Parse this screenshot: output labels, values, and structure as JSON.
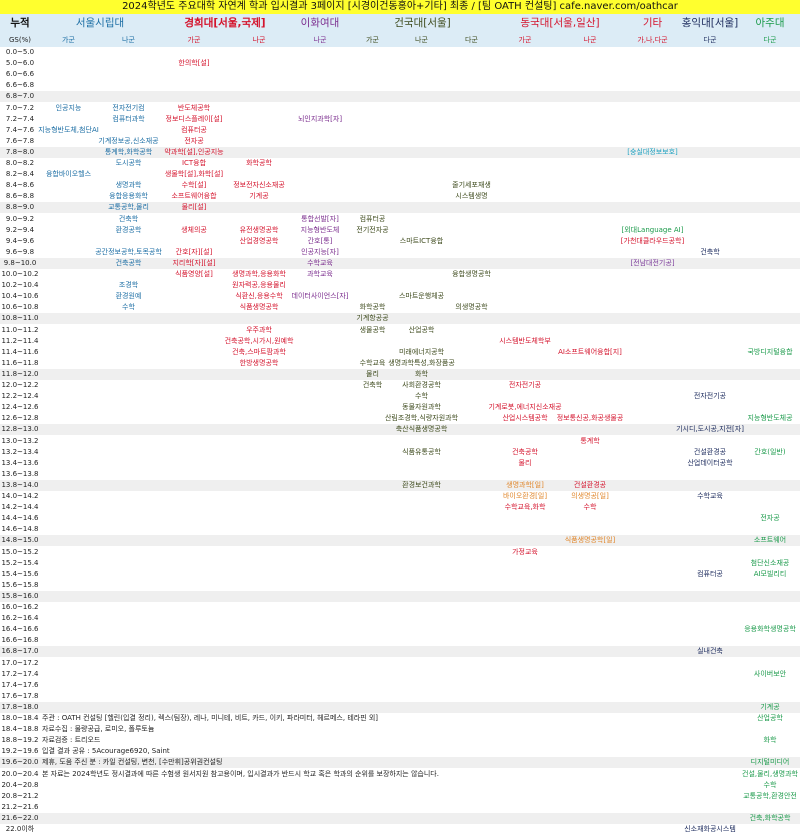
{
  "title": "2024학년도 주요대학 자연계 학과 입시결과 3페이지 [시경이건동홍아+기타] 최종 / [팀 OATH 컨설팅] cafe.naver.com/oathcar",
  "colors": {
    "title_bg": "#ffff2e",
    "header_bg": "#dcecf6",
    "shaded_row": "#efefef"
  },
  "header": {
    "cum_label": "누적",
    "gs_label": "GS(%)",
    "universities": [
      {
        "name": "서울시립대",
        "color": "#1c6ea4"
      },
      {
        "name": "경희대[서울,국제]",
        "color": "#d4132c"
      },
      {
        "name": "이화여대",
        "color": "#7b2d8e"
      },
      {
        "name": "건국대[서울]",
        "color": "#3d4a1c"
      },
      {
        "name": "동국대[서울,일산]",
        "color": "#d4132c"
      },
      {
        "name": "기타",
        "color": "#d4132c"
      },
      {
        "name": "홍익대[서울]",
        "color": "#1b2a5c"
      },
      {
        "name": "아주대",
        "color": "#1a9a4a"
      }
    ],
    "columns": [
      {
        "key": "uos_ga",
        "label": "가군",
        "color": "#1c6ea4"
      },
      {
        "key": "uos_na",
        "label": "나군",
        "color": "#1c6ea4"
      },
      {
        "key": "khu_ga",
        "label": "가군",
        "color": "#d4132c"
      },
      {
        "key": "khu_na",
        "label": "나군",
        "color": "#d4132c"
      },
      {
        "key": "ewha_na",
        "label": "나군",
        "color": "#7b2d8e"
      },
      {
        "key": "kku_ga",
        "label": "가군",
        "color": "#3d4a1c"
      },
      {
        "key": "kku_na",
        "label": "나군",
        "color": "#3d4a1c"
      },
      {
        "key": "kku_da",
        "label": "다군",
        "color": "#3d4a1c"
      },
      {
        "key": "dgu_ga",
        "label": "가군",
        "color": "#d4132c"
      },
      {
        "key": "dgu_na",
        "label": "나군",
        "color": "#d4132c"
      },
      {
        "key": "etc",
        "label": "가,나,다군",
        "color": "#d4132c"
      },
      {
        "key": "hongik_da",
        "label": "다군",
        "color": "#1b2a5c"
      },
      {
        "key": "ajou_da",
        "label": "다군",
        "color": "#1a9a4a"
      }
    ]
  },
  "special_colors": {
    "ilsan": "#e0862a",
    "soongsil": "#1aa0c0",
    "hufs": "#1a9a4a",
    "gachon": "#d4132c",
    "chonnam": "#7b3a9a"
  },
  "rows": [
    {
      "gs": "0.0~5.0",
      "cells": {}
    },
    {
      "gs": "5.0~6.0",
      "cells": {
        "khu_ga": "한의학[설]"
      }
    },
    {
      "gs": "6.0~6.6",
      "cells": {}
    },
    {
      "gs": "6.6~6.8",
      "cells": {}
    },
    {
      "gs": "6.8~7.0",
      "cells": {}
    },
    {
      "gs": "7.0~7.2",
      "cells": {
        "uos_ga": "인공지능",
        "uos_na": "전자전기컴",
        "khu_ga": "반도체공학"
      }
    },
    {
      "gs": "7.2~7.4",
      "cells": {
        "uos_na": "컴퓨터과학",
        "khu_ga": "정보디스플레이[설]",
        "ewha_na": "뇌인지과학[자]"
      }
    },
    {
      "gs": "7.4~7.6",
      "cells": {
        "uos_ga": "지능형반도체,첨단AI",
        "khu_ga": "컴퓨터공"
      }
    },
    {
      "gs": "7.6~7.8",
      "cells": {
        "uos_na": "기계정보공,신소재공",
        "khu_ga": "전자공"
      }
    },
    {
      "gs": "7.8~8.0",
      "cells": {
        "uos_na": "통계학,화학공학",
        "khu_ga": "약과학[설],인공지능",
        "etc": "[숭실대정보보호]"
      },
      "colors": {
        "etc": "soongsil"
      }
    },
    {
      "gs": "8.0~8.2",
      "cells": {
        "uos_na": "도시공학",
        "khu_ga": "ICT융합",
        "khu_na": "화학공학"
      }
    },
    {
      "gs": "8.2~8.4",
      "cells": {
        "uos_ga": "융합바이오헬스",
        "khu_ga": "생물학[설],화학[설]"
      }
    },
    {
      "gs": "8.4~8.6",
      "cells": {
        "uos_na": "생명과학",
        "khu_ga": "수학[설]",
        "khu_na": "정보전자신소재공",
        "kku_da": "줄기세포재생"
      }
    },
    {
      "gs": "8.6~8.8",
      "cells": {
        "uos_na": "융합응용화학",
        "khu_ga": "소프트웨어융합",
        "khu_na": "기계공",
        "kku_da": "시스템생명"
      }
    },
    {
      "gs": "8.8~9.0",
      "cells": {
        "uos_na": "교통공학,물리",
        "khu_ga": "물리[설]"
      }
    },
    {
      "gs": "9.0~9.2",
      "cells": {
        "uos_na": "건축학",
        "ewha_na": "통합선발[자]",
        "kku_ga": "컴퓨터공"
      }
    },
    {
      "gs": "9.2~9.4",
      "cells": {
        "uos_na": "환경공학",
        "khu_ga": "생체의공",
        "khu_na": "유전생명공학",
        "ewha_na": "지능형반도체",
        "kku_ga": "전기전자공",
        "etc": "[외대Language AI]"
      },
      "colors": {
        "etc": "hufs"
      }
    },
    {
      "gs": "9.4~9.6",
      "cells": {
        "khu_na": "산업경영공학",
        "ewha_na": "간호[통]",
        "kku_na": "스마트ICT융합",
        "etc": "[가천대클라우드공학]"
      },
      "colors": {
        "etc": "gachon"
      }
    },
    {
      "gs": "9.6~9.8",
      "cells": {
        "uos_na": "공간정보공학,토목공학",
        "khu_ga": "간호[자][설]",
        "ewha_na": "인공지능[자]",
        "hongik_da": "건축학"
      }
    },
    {
      "gs": "9.8~10.0",
      "cells": {
        "uos_na": "건축공학",
        "khu_ga": "지리학[자][설]",
        "ewha_na": "수학교육",
        "etc": "[전남대전기공]"
      },
      "colors": {
        "etc": "chonnam"
      }
    },
    {
      "gs": "10.0~10.2",
      "cells": {
        "khu_ga": "식품영양[설]",
        "khu_na": "생명과학,응용화학",
        "ewha_na": "과학교육",
        "kku_da": "융합생명공학"
      }
    },
    {
      "gs": "10.2~10.4",
      "cells": {
        "uos_na": "조경학",
        "khu_na": "원자력공,응용물리"
      }
    },
    {
      "gs": "10.4~10.6",
      "cells": {
        "uos_na": "환경원예",
        "khu_na": "식환신,응용수학",
        "ewha_na": "데이터사이언스[자]",
        "kku_na": "스마트운행체공"
      }
    },
    {
      "gs": "10.6~10.8",
      "cells": {
        "uos_na": "수학",
        "khu_na": "식품생명공학",
        "kku_ga": "화학공학",
        "kku_da": "의생명공학"
      }
    },
    {
      "gs": "10.8~11.0",
      "cells": {
        "kku_ga": "기계항공공"
      }
    },
    {
      "gs": "11.0~11.2",
      "cells": {
        "khu_na": "우주과학",
        "kku_ga": "생물공학",
        "kku_na": "산업공학"
      }
    },
    {
      "gs": "11.2~11.4",
      "cells": {
        "khu_na": "건축공학,시가시,원예학",
        "dgu_ga": "시스템반도체학부"
      }
    },
    {
      "gs": "11.4~11.6",
      "cells": {
        "khu_na": "건축,스마트팜과학",
        "kku_na": "미래에너지공학",
        "dgu_na": "AI소프트웨어융합[지]",
        "ajou_da": "국방디지털융합"
      }
    },
    {
      "gs": "11.6~11.8",
      "cells": {
        "khu_na": "한방생명공학",
        "kku_ga": "수학교육",
        "kku_na": "생명과학특성,화장품공"
      }
    },
    {
      "gs": "11.8~12.0",
      "cells": {
        "kku_ga": "물리",
        "kku_na": "화학"
      }
    },
    {
      "gs": "12.0~12.2",
      "cells": {
        "kku_ga": "건축학",
        "kku_na": "사회환경공학",
        "dgu_ga": "전자전기공"
      }
    },
    {
      "gs": "12.2~12.4",
      "cells": {
        "kku_na": "수학",
        "hongik_da": "전자전기공"
      }
    },
    {
      "gs": "12.4~12.6",
      "cells": {
        "kku_na": "동물자원과학",
        "dgu_ga": "기계로봇,에너지신소재공"
      }
    },
    {
      "gs": "12.6~12.8",
      "cells": {
        "kku_na": "산림조경학,식량자원과학",
        "dgu_ga": "산업시스템공학",
        "dgu_na": "정보통신공,화공생물공",
        "ajou_da": "지능형반도체공"
      }
    },
    {
      "gs": "12.8~13.0",
      "cells": {
        "kku_na": "축산식품생명공학",
        "hongik_da": "기시디,도시공,지전[자]"
      }
    },
    {
      "gs": "13.0~13.2",
      "cells": {
        "dgu_na": "통계학"
      }
    },
    {
      "gs": "13.2~13.4",
      "cells": {
        "kku_na": "식품유통공학",
        "dgu_ga": "건축공학",
        "hongik_da": "건설환경공",
        "ajou_da": "간호(일반)"
      }
    },
    {
      "gs": "13.4~13.6",
      "cells": {
        "dgu_ga": "물리",
        "hongik_da": "산업데이터공학"
      }
    },
    {
      "gs": "13.6~13.8",
      "cells": {}
    },
    {
      "gs": "13.8~14.0",
      "cells": {
        "kku_na": "환경보건과학",
        "dgu_ga": "생명과학[일]",
        "dgu_na": "건설환경공"
      },
      "colors": {
        "dgu_ga": "ilsan"
      }
    },
    {
      "gs": "14.0~14.2",
      "cells": {
        "dgu_ga": "바이오환경[일]",
        "dgu_na": "의생명공[일]",
        "hongik_da": "수학교육"
      },
      "colors": {
        "dgu_ga": "ilsan",
        "dgu_na": "ilsan"
      }
    },
    {
      "gs": "14.2~14.4",
      "cells": {
        "dgu_ga": "수학교육,화학",
        "dgu_na": "수학"
      }
    },
    {
      "gs": "14.4~14.6",
      "cells": {
        "ajou_da": "전자공"
      }
    },
    {
      "gs": "14.6~14.8",
      "cells": {}
    },
    {
      "gs": "14.8~15.0",
      "cells": {
        "dgu_na": "식품생명공학[일]",
        "ajou_da": "소프트웨어"
      },
      "colors": {
        "dgu_na": "ilsan"
      }
    },
    {
      "gs": "15.0~15.2",
      "cells": {
        "dgu_ga": "가정교육"
      }
    },
    {
      "gs": "15.2~15.4",
      "cells": {
        "ajou_da": "첨단신소재공"
      }
    },
    {
      "gs": "15.4~15.6",
      "cells": {
        "hongik_da": "컴퓨터공",
        "ajou_da": "AI모빌리티"
      }
    },
    {
      "gs": "15.6~15.8",
      "cells": {}
    },
    {
      "gs": "15.8~16.0",
      "cells": {}
    },
    {
      "gs": "16.0~16.2",
      "cells": {}
    },
    {
      "gs": "16.2~16.4",
      "cells": {}
    },
    {
      "gs": "16.4~16.6",
      "cells": {
        "ajou_da": "응용화학생명공학"
      }
    },
    {
      "gs": "16.6~16.8",
      "cells": {}
    },
    {
      "gs": "16.8~17.0",
      "cells": {
        "hongik_da": "실내건축"
      }
    },
    {
      "gs": "17.0~17.2",
      "cells": {}
    },
    {
      "gs": "17.2~17.4",
      "cells": {
        "ajou_da": "사이버보안"
      }
    },
    {
      "gs": "17.4~17.6",
      "cells": {}
    },
    {
      "gs": "17.6~17.8",
      "cells": {}
    },
    {
      "gs": "17.8~18.0",
      "cells": {
        "ajou_da": "기계공"
      }
    },
    {
      "gs": "18.0~18.4",
      "note": "주관 : OATH 컨설팅 [헬린(입결 정리), 렉스(팀장), 레나, 미니테, 비트, 카드, 이키, 파라미터, 헤르메스, 테라핀 외]",
      "cells": {
        "ajou_da": "산업공학"
      }
    },
    {
      "gs": "18.4~18.8",
      "note": "자료수집 : 물량공급, 로미오, 폴루토늄",
      "cells": {}
    },
    {
      "gs": "18.8~19.2",
      "note": "자료검증 : 트리오드",
      "cells": {
        "ajou_da": "화학"
      }
    },
    {
      "gs": "19.2~19.6",
      "note": "입결 결과 공유 : 5Acourage6920, Saint",
      "cells": {}
    },
    {
      "gs": "19.6~20.0",
      "note": "제휴, 도움 주신 분 : 카일 컨설팅, 변천, [수만휘]공위권컨설팅",
      "cells": {
        "ajou_da": "디지털미디어"
      }
    },
    {
      "gs": "20.0~20.4",
      "note": "본 자료는 2024학년도 정시결과에 따른 수험생 원서지원 참고용이며, 입시결과가 반드시 학교 혹은 학과의 순위를 보장하지는 않습니다.",
      "cells": {
        "ajou_da": "건설,물리,생명과학"
      }
    },
    {
      "gs": "20.4~20.8",
      "cells": {
        "ajou_da": "수학"
      }
    },
    {
      "gs": "20.8~21.2",
      "cells": {
        "ajou_da": "교통공학,환경안전"
      }
    },
    {
      "gs": "21.2~21.6",
      "cells": {}
    },
    {
      "gs": "21.6~22.0",
      "cells": {
        "ajou_da": "건축,화학공학"
      }
    },
    {
      "gs": "22.0이하",
      "cells": {
        "hongik_da": "신소재화공시스템"
      }
    }
  ]
}
